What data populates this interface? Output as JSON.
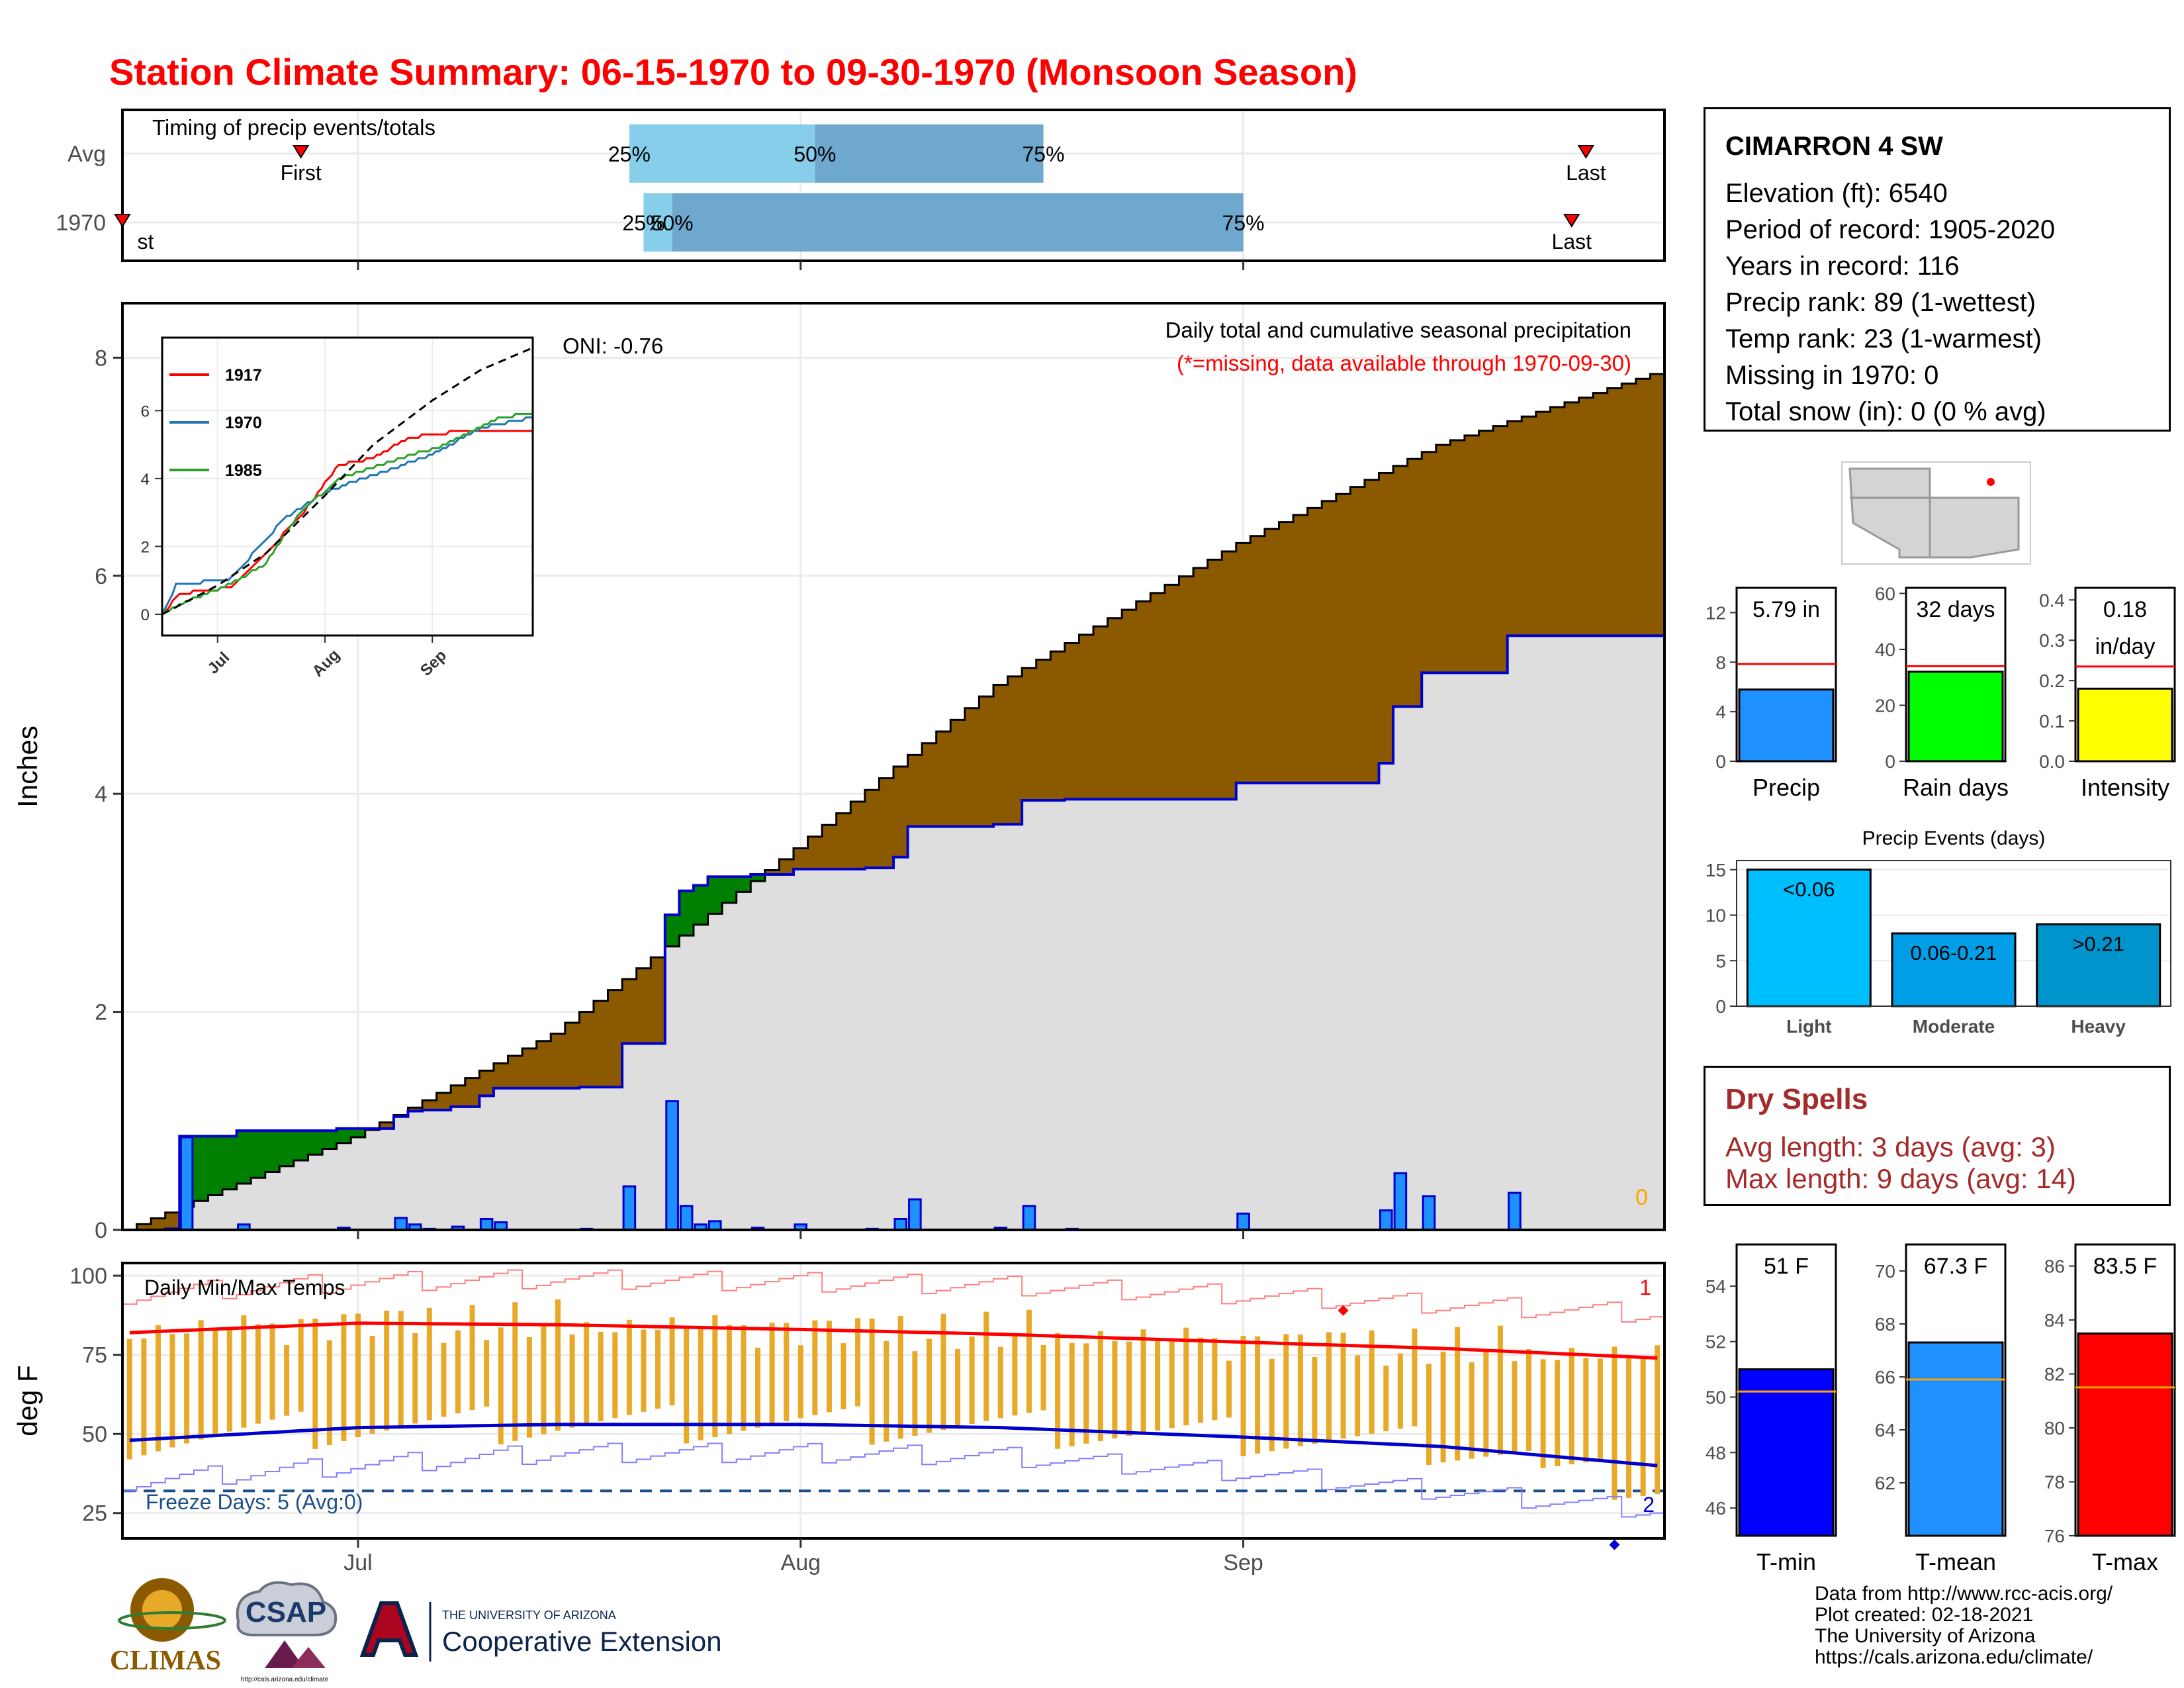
{
  "title": "Station Climate Summary: 06-15-1970 to 09-30-1970 (Monsoon Season)",
  "timing": {
    "label": "Timing of precip events/totals",
    "rows": [
      {
        "label": "Avg",
        "first_label": "First",
        "last_label": "Last",
        "p25": "25%",
        "p50": "50%",
        "p75": "75%",
        "first": "06-27",
        "q25": "07-20",
        "q50": "08-02",
        "q75": "08-18",
        "last": "09-25"
      },
      {
        "label": "1970",
        "first_label": "First",
        "last_label": "Last",
        "p25": "25%",
        "p50": "50%",
        "p75": "75%",
        "first": "06-15",
        "q25": "07-21",
        "q50": "07-23",
        "q75": "09-01",
        "last": "09-24"
      }
    ]
  },
  "station": {
    "name": "CIMARRON 4 SW",
    "elevation": "Elevation (ft): 6540",
    "period": "Period of record: 1905-2020",
    "years": "Years in record: 116",
    "precip_rank": "Precip rank: 89 (1-wettest)",
    "temp_rank": "Temp rank: 23 (1-warmest)",
    "missing": "Missing in 1970: 0",
    "snow": "Total snow (in): 0 (0 % avg)"
  },
  "precip_panel": {
    "title": "Daily total and cumulative seasonal precipitation",
    "subtitle": "(*=missing, data available through 1970-09-30)",
    "oni": "ONI: -0.76",
    "ylabel": "Inches",
    "corner_value": "0"
  },
  "temp_panel": {
    "title": "Daily Min/Max Temps",
    "ylabel": "deg F",
    "freeze": "Freeze Days: 5 (Avg:0)",
    "record_high_count": "1",
    "record_low_count": "2"
  },
  "dry_spells": {
    "title": "Dry Spells",
    "avg": "Avg length: 3 days (avg: 3)",
    "max": "Max length: 9 days (avg: 14)"
  },
  "credits": {
    "line1": "Data from http://www.rcc-acis.org/",
    "line2": "Plot created: 02-18-2021",
    "line3": "The University of Arizona",
    "line4": "https://cals.arizona.edu/climate/"
  },
  "logos": {
    "climas": "CLIMAS",
    "csap": "CSAP",
    "csap_url": "http://cals.arizona.edu/climate",
    "ua_small": "THE UNIVERSITY OF ARIZONA",
    "ua_big": "Cooperative Extension"
  },
  "colors": {
    "title": "#ff0000",
    "deficit": "#8b5a00",
    "surplus": "#008000",
    "bars": "#1e90ff",
    "avg_fill": "#dedede",
    "accent_line": "#0000cd",
    "temp_bar": "#e8a928",
    "dry_spell": "#a52a2a"
  },
  "chart_data": {
    "x_ticks": [
      "Jul",
      "Aug",
      "Sep"
    ],
    "daily_precip": {
      "type": "bar",
      "ylabel": "Inches",
      "ylim": [
        0,
        8.5
      ],
      "y_ticks": [
        0,
        2,
        4,
        6,
        8
      ],
      "days": [
        {
          "date": "06-18",
          "value": 0.01
        },
        {
          "date": "06-19",
          "value": 0.85
        },
        {
          "date": "06-23",
          "value": 0.05
        },
        {
          "date": "06-30",
          "value": 0.02
        },
        {
          "date": "07-04",
          "value": 0.11
        },
        {
          "date": "07-05",
          "value": 0.05
        },
        {
          "date": "07-06",
          "value": 0.01
        },
        {
          "date": "07-08",
          "value": 0.03
        },
        {
          "date": "07-10",
          "value": 0.1
        },
        {
          "date": "07-11",
          "value": 0.07
        },
        {
          "date": "07-17",
          "value": 0.01
        },
        {
          "date": "07-20",
          "value": 0.4
        },
        {
          "date": "07-23",
          "value": 1.18
        },
        {
          "date": "07-24",
          "value": 0.22
        },
        {
          "date": "07-25",
          "value": 0.05
        },
        {
          "date": "07-26",
          "value": 0.08
        },
        {
          "date": "07-29",
          "value": 0.02
        },
        {
          "date": "08-01",
          "value": 0.05
        },
        {
          "date": "08-06",
          "value": 0.01
        },
        {
          "date": "08-08",
          "value": 0.1
        },
        {
          "date": "08-09",
          "value": 0.28
        },
        {
          "date": "08-15",
          "value": 0.02
        },
        {
          "date": "08-17",
          "value": 0.22
        },
        {
          "date": "08-20",
          "value": 0.01
        },
        {
          "date": "09-01",
          "value": 0.15
        },
        {
          "date": "09-11",
          "value": 0.18
        },
        {
          "date": "09-12",
          "value": 0.52
        },
        {
          "date": "09-14",
          "value": 0.31
        },
        {
          "date": "09-20",
          "value": 0.34
        }
      ]
    },
    "cumulative": {
      "type": "step",
      "note": "1970 cumulative total 5.79 in; average cumulative reaches about 7.85 in by 09-30",
      "avg_points": [
        {
          "date": "06-15",
          "value": 0.0
        },
        {
          "date": "07-01",
          "value": 0.85
        },
        {
          "date": "07-15",
          "value": 1.8
        },
        {
          "date": "08-01",
          "value": 3.5
        },
        {
          "date": "08-15",
          "value": 5.0
        },
        {
          "date": "09-01",
          "value": 6.3
        },
        {
          "date": "09-15",
          "value": 7.2
        },
        {
          "date": "09-30",
          "value": 7.85
        }
      ]
    },
    "inset": {
      "type": "line",
      "x_ticks": [
        "Jul",
        "Aug",
        "Sep"
      ],
      "y_ticks": [
        0,
        2,
        4,
        6
      ],
      "ylim": [
        0,
        7.8
      ],
      "series": [
        {
          "name": "1917",
          "color": "#ff0000",
          "points": [
            {
              "date": "06-15",
              "value": 0
            },
            {
              "date": "06-20",
              "value": 0.6
            },
            {
              "date": "07-05",
              "value": 0.8
            },
            {
              "date": "07-15",
              "value": 1.8
            },
            {
              "date": "07-25",
              "value": 2.9
            },
            {
              "date": "08-05",
              "value": 4.4
            },
            {
              "date": "08-15",
              "value": 4.6
            },
            {
              "date": "08-25",
              "value": 5.2
            },
            {
              "date": "09-10",
              "value": 5.4
            },
            {
              "date": "09-30",
              "value": 5.4
            }
          ]
        },
        {
          "name": "1970",
          "color": "#1f77b4",
          "points": [
            {
              "date": "06-15",
              "value": 0
            },
            {
              "date": "06-19",
              "value": 0.85
            },
            {
              "date": "07-05",
              "value": 1.05
            },
            {
              "date": "07-20",
              "value": 2.8
            },
            {
              "date": "08-01",
              "value": 3.6
            },
            {
              "date": "08-15",
              "value": 4.1
            },
            {
              "date": "09-01",
              "value": 4.7
            },
            {
              "date": "09-15",
              "value": 5.5
            },
            {
              "date": "09-30",
              "value": 5.79
            }
          ]
        },
        {
          "name": "1985",
          "color": "#2ca02c",
          "points": [
            {
              "date": "06-15",
              "value": 0
            },
            {
              "date": "06-25",
              "value": 0.5
            },
            {
              "date": "07-05",
              "value": 0.9
            },
            {
              "date": "07-15",
              "value": 1.5
            },
            {
              "date": "07-25",
              "value": 3.0
            },
            {
              "date": "08-05",
              "value": 4.0
            },
            {
              "date": "08-20",
              "value": 4.5
            },
            {
              "date": "09-05",
              "value": 5.0
            },
            {
              "date": "09-20",
              "value": 5.8
            },
            {
              "date": "09-30",
              "value": 5.9
            }
          ]
        },
        {
          "name": "",
          "color": "#000000",
          "dashed": true,
          "points": [
            {
              "date": "06-15",
              "value": 0
            },
            {
              "date": "07-01",
              "value": 0.85
            },
            {
              "date": "07-15",
              "value": 1.8
            },
            {
              "date": "08-01",
              "value": 3.5
            },
            {
              "date": "08-15",
              "value": 5.0
            },
            {
              "date": "09-01",
              "value": 6.3
            },
            {
              "date": "09-15",
              "value": 7.2
            },
            {
              "date": "09-30",
              "value": 7.85
            }
          ]
        }
      ]
    },
    "temps": {
      "type": "bar-range",
      "ylabel": "deg F",
      "ylim": [
        17,
        104
      ],
      "y_ticks": [
        25,
        50,
        75,
        100
      ],
      "freeze_line": 32,
      "avg_max": [
        {
          "date": "06-15",
          "value": 82
        },
        {
          "date": "07-01",
          "value": 85
        },
        {
          "date": "07-15",
          "value": 84.5
        },
        {
          "date": "08-01",
          "value": 83
        },
        {
          "date": "08-15",
          "value": 81.5
        },
        {
          "date": "09-01",
          "value": 79
        },
        {
          "date": "09-15",
          "value": 77
        },
        {
          "date": "09-30",
          "value": 74
        }
      ],
      "avg_min": [
        {
          "date": "06-15",
          "value": 48
        },
        {
          "date": "07-01",
          "value": 52
        },
        {
          "date": "07-15",
          "value": 53
        },
        {
          "date": "08-01",
          "value": 53
        },
        {
          "date": "08-15",
          "value": 52
        },
        {
          "date": "09-01",
          "value": 49
        },
        {
          "date": "09-15",
          "value": 46
        },
        {
          "date": "09-30",
          "value": 40
        }
      ],
      "record_max": [
        {
          "date": "06-15",
          "value": 94
        },
        {
          "date": "07-01",
          "value": 98
        },
        {
          "date": "07-15",
          "value": 99
        },
        {
          "date": "08-01",
          "value": 98
        },
        {
          "date": "08-15",
          "value": 97
        },
        {
          "date": "09-01",
          "value": 94
        },
        {
          "date": "09-15",
          "value": 91
        },
        {
          "date": "09-30",
          "value": 88
        }
      ],
      "record_min": [
        {
          "date": "06-15",
          "value": 35
        },
        {
          "date": "07-01",
          "value": 40
        },
        {
          "date": "07-15",
          "value": 44
        },
        {
          "date": "08-01",
          "value": 44
        },
        {
          "date": "08-15",
          "value": 43
        },
        {
          "date": "09-01",
          "value": 38
        },
        {
          "date": "09-15",
          "value": 32
        },
        {
          "date": "09-30",
          "value": 26
        }
      ],
      "daily_range_summary": {
        "tmax_typical": [
          78,
          92
        ],
        "tmin_typical": [
          45,
          58
        ]
      },
      "record_high_marker": {
        "date": "09-08",
        "value": 89
      },
      "record_low_marker": {
        "date": "09-27",
        "value": 15
      }
    },
    "summary_bars": [
      {
        "label": "Precip",
        "value": 5.79,
        "value_label": "5.79 in",
        "avg": 7.85,
        "color": "#1e90ff",
        "ylim": [
          0,
          14
        ],
        "y_ticks": [
          0,
          4,
          8,
          12
        ]
      },
      {
        "label": "Rain days",
        "value": 32,
        "value_label": "32 days",
        "avg": 34,
        "color": "#00ff00",
        "ylim": [
          0,
          62
        ],
        "y_ticks": [
          0,
          20,
          40,
          60
        ]
      },
      {
        "label": "Intensity",
        "value": 0.18,
        "value_label1": "0.18",
        "value_label2": "in/day",
        "avg": 0.235,
        "color": "#ffff00",
        "ylim": [
          0,
          0.43
        ],
        "y_ticks": [
          0.0,
          0.1,
          0.2,
          0.3,
          0.4
        ]
      }
    ],
    "precip_events": {
      "title": "Precip Events (days)",
      "type": "bar",
      "categories": [
        "Light",
        "Moderate",
        "Heavy"
      ],
      "values": [
        15,
        8,
        9
      ],
      "bar_labels": [
        "<0.06",
        "0.06-0.21",
        ">0.21"
      ],
      "colors": [
        "#00bfff",
        "#009ee6",
        "#0094cc"
      ],
      "ylim": [
        0,
        16
      ],
      "y_ticks": [
        0,
        5,
        10,
        15
      ]
    },
    "temp_summary": [
      {
        "label": "T-min",
        "value": 51.0,
        "value_label": "51 F",
        "avg": 50.2,
        "color": "#0000ff",
        "ylim": [
          45,
          55.5
        ],
        "y_ticks": [
          46,
          48,
          50,
          52,
          54
        ]
      },
      {
        "label": "T-mean",
        "value": 67.3,
        "value_label": "67.3 F",
        "avg": 65.9,
        "color": "#1e90ff",
        "ylim": [
          60,
          71
        ],
        "y_ticks": [
          62,
          64,
          66,
          68,
          70
        ]
      },
      {
        "label": "T-max",
        "value": 83.5,
        "value_label": "83.5 F",
        "avg": 81.5,
        "color": "#ff0000",
        "ylim": [
          76,
          86.8
        ],
        "y_ticks": [
          76,
          78,
          80,
          82,
          84,
          86
        ]
      }
    ]
  }
}
